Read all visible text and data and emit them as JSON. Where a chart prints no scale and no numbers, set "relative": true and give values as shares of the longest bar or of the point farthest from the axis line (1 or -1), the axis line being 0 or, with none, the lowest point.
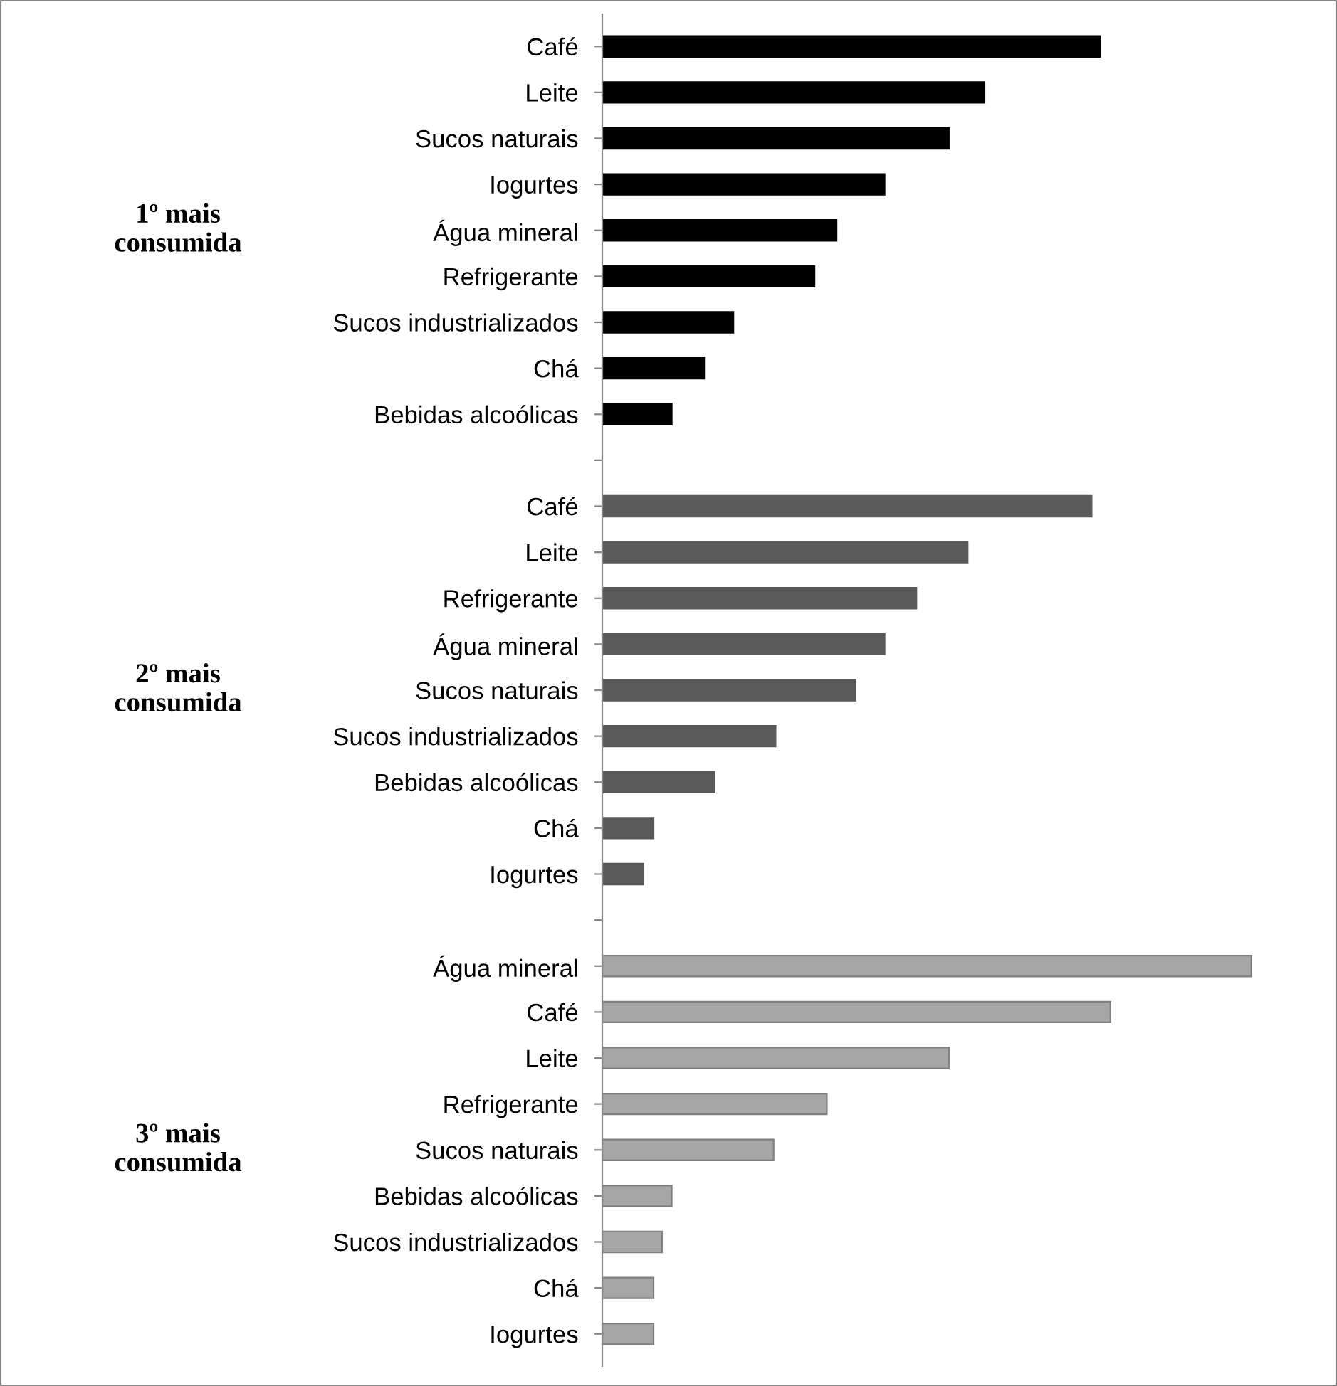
{
  "chart_data": {
    "type": "bar",
    "orientation": "horizontal",
    "relative": true,
    "legend": false,
    "grid": false,
    "categories": [
      "Café",
      "Leite",
      "Sucos naturais",
      "Iogurtes",
      "Água mineral",
      "Refrigerante",
      "Sucos industrializados",
      "Chá",
      "Bebidas alcoólicas",
      null,
      "Café",
      "Leite",
      "Refrigerante",
      "Água mineral",
      "Sucos naturais",
      "Sucos industrializados",
      "Bebidas alcoólicas",
      "Chá",
      "Iogurtes",
      null,
      "Água mineral",
      "Café",
      "Leite",
      "Refrigerante",
      "Sucos naturais",
      "Bebidas alcoólicas",
      "Sucos industrializados",
      "Chá",
      "Iogurtes"
    ],
    "series": [
      {
        "color": "#000000",
        "values": [
          0.767,
          0.589,
          0.534,
          0.435,
          0.361,
          0.327,
          0.202,
          0.157,
          0.107,
          null,
          null,
          null,
          null,
          null,
          null,
          null,
          null,
          null,
          null,
          null,
          null,
          null,
          null,
          null,
          null,
          null,
          null,
          null,
          null
        ]
      },
      {
        "color": "#595959",
        "values": [
          null,
          null,
          null,
          null,
          null,
          null,
          null,
          null,
          null,
          null,
          0.754,
          0.563,
          0.484,
          0.435,
          0.39,
          0.267,
          0.173,
          0.079,
          0.063,
          null,
          null,
          null,
          null,
          null,
          null,
          null,
          null,
          null,
          null
        ]
      },
      {
        "color": "#a6a6a6",
        "values": [
          null,
          null,
          null,
          null,
          null,
          null,
          null,
          null,
          null,
          null,
          null,
          null,
          null,
          null,
          null,
          null,
          null,
          null,
          null,
          null,
          1,
          0.783,
          0.534,
          0.346,
          0.264,
          0.107,
          0.092,
          0.079,
          0.079
        ]
      }
    ],
    "annotations": [
      "1º mais\nconsumida",
      "2º mais\nconsumida",
      "3º mais\nconsumida"
    ]
  }
}
